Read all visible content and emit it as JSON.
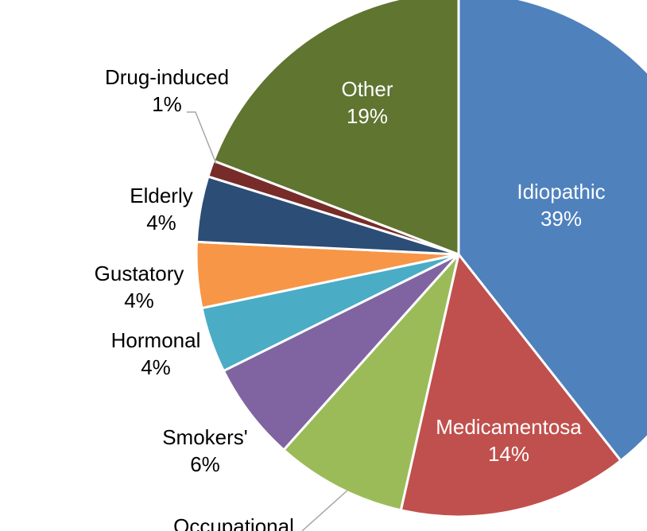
{
  "chart_data": {
    "type": "pie",
    "title": "",
    "start_angle_deg": 0,
    "direction": "clockwise",
    "slices": [
      {
        "label": "Idiopathic",
        "pct_label": "39%",
        "value": 39,
        "color": "#4F81BD",
        "label_color": "#ffffff"
      },
      {
        "label": "Medicamentosa",
        "pct_label": "14%",
        "value": 14,
        "color": "#C0504D",
        "label_color": "#ffffff"
      },
      {
        "label": "Occupational",
        "pct_label": "",
        "value": 8,
        "color": "#9BBB59",
        "label_color": "#000000"
      },
      {
        "label": "Smokers'",
        "pct_label": "6%",
        "value": 6,
        "color": "#8064A2",
        "label_color": "#000000"
      },
      {
        "label": "Hormonal",
        "pct_label": "4%",
        "value": 4,
        "color": "#4BACC6",
        "label_color": "#000000"
      },
      {
        "label": "Gustatory",
        "pct_label": "4%",
        "value": 4,
        "color": "#F79646",
        "label_color": "#000000"
      },
      {
        "label": "Elderly",
        "pct_label": "4%",
        "value": 4,
        "color": "#2C4D75",
        "label_color": "#000000"
      },
      {
        "label": "Drug-induced",
        "pct_label": "1%",
        "value": 1,
        "color": "#772C2A",
        "label_color": "#000000"
      },
      {
        "label": "Other",
        "pct_label": "19%",
        "value": 19,
        "color": "#5F7530",
        "label_color": "#ffffff"
      }
    ]
  }
}
